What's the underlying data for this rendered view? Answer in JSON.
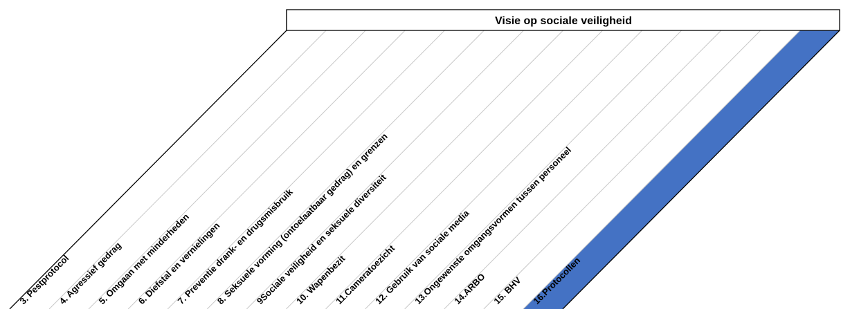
{
  "header": {
    "title": "Visie op sociale veiligheid"
  },
  "columns": [
    {
      "label": "3. Pestprotocol",
      "highlighted": false
    },
    {
      "label": "4. Agressief gedrag",
      "highlighted": false
    },
    {
      "label": "5. Omgaan met minderheden",
      "highlighted": false
    },
    {
      "label": "6. Diefstal en vernielingen",
      "highlighted": false
    },
    {
      "label": "7. Preventie drank- en drugsmisbruik",
      "highlighted": false
    },
    {
      "label": "8. Seksuele vorming (ontoelaatbaar gedrag) en grenzen",
      "highlighted": false
    },
    {
      "label": "9Sociale veiligheid en seksuele diversiteit",
      "highlighted": false
    },
    {
      "label": "10. Wapenbezit",
      "highlighted": false
    },
    {
      "label": "11.Cameratoezicht",
      "highlighted": false
    },
    {
      "label": "12. Gebruik van sociale media",
      "highlighted": false
    },
    {
      "label": "13.Ongewenste omgangsvormen tussen personeel",
      "highlighted": false
    },
    {
      "label": "14.ARBO",
      "highlighted": false
    },
    {
      "label": "15. BHV",
      "highlighted": false
    },
    {
      "label": "16.Protocollen",
      "highlighted": true
    }
  ],
  "colors": {
    "highlight": "#4472c4",
    "grid_line": "#c8c8c8",
    "border": "#000000"
  }
}
